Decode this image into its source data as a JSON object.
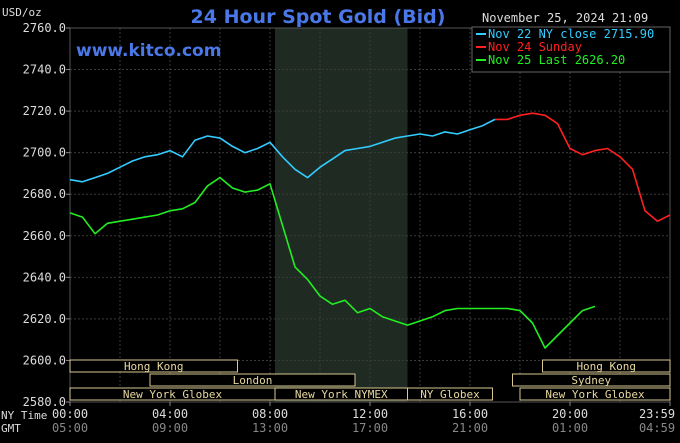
{
  "chart_data": {
    "type": "line",
    "title": "24 Hour Spot Gold (Bid)",
    "unit_label": "USD/oz",
    "timestamp": "November 25, 2024 21:09",
    "watermark": "www.kitco.com",
    "ylim": [
      2580,
      2760
    ],
    "y_ticks": [
      "2760.0",
      "2740.0",
      "2720.0",
      "2700.0",
      "2680.0",
      "2660.0",
      "2640.0",
      "2620.0",
      "2600.0",
      "2580.0"
    ],
    "x_axis_ny_label": "NY Time",
    "x_axis_gmt_label": "GMT",
    "x_ticks_ny": [
      "00:00",
      "04:00",
      "08:00",
      "12:00",
      "16:00",
      "20:00",
      "23:59"
    ],
    "x_ticks_gmt": [
      "05:00",
      "09:00",
      "13:00",
      "17:00",
      "21:00",
      "01:00",
      "04:59"
    ],
    "legend": [
      {
        "label": "Nov 22 NY close 2715.90",
        "color": "#33ccff"
      },
      {
        "label": "Nov 24 Sunday",
        "color": "#ff2020"
      },
      {
        "label": "Nov 25 Last 2626.20",
        "color": "#22ee22"
      }
    ],
    "sessions_row1": [
      {
        "label": "Hong Kong",
        "start": 0,
        "end": 6.7
      },
      {
        "label": "Hong Kong",
        "start": 18.9,
        "end": 24
      }
    ],
    "sessions_row2": [
      {
        "label": "London",
        "start": 3.2,
        "end": 11.4
      },
      {
        "label": "Sydney",
        "start": 17.7,
        "end": 24
      }
    ],
    "sessions_row3": [
      {
        "label": "New York Globex",
        "start": 0,
        "end": 8.2
      },
      {
        "label": "New York NYMEX",
        "start": 8.2,
        "end": 13.5
      },
      {
        "label": "NY Globex",
        "start": 13.5,
        "end": 16.9
      },
      {
        "label": "New York Globex",
        "start": 18,
        "end": 24
      }
    ],
    "shaded_range": [
      8.2,
      13.5
    ],
    "series": [
      {
        "name": "Nov 22 NY close 2715.90",
        "color": "#33ccff",
        "x": [
          0,
          0.5,
          1,
          1.5,
          2,
          2.5,
          3,
          3.5,
          4,
          4.5,
          5,
          5.5,
          6,
          6.5,
          7,
          7.5,
          8,
          8.5,
          9,
          9.5,
          10,
          10.5,
          11,
          11.5,
          12,
          12.5,
          13,
          13.5,
          14,
          14.5,
          15,
          15.5,
          16,
          16.5,
          17
        ],
        "y": [
          2687,
          2686,
          2688,
          2690,
          2693,
          2696,
          2698,
          2699,
          2701,
          2698,
          2706,
          2708,
          2707,
          2703,
          2700,
          2702,
          2705,
          2698,
          2692,
          2688,
          2693,
          2697,
          2701,
          2702,
          2703,
          2705,
          2707,
          2708,
          2709,
          2708,
          2710,
          2709,
          2711,
          2713,
          2716
        ]
      },
      {
        "name": "Nov 24 Sunday",
        "color": "#ff2020",
        "x": [
          17,
          17.5,
          18,
          18.5,
          19,
          19.5,
          20,
          20.5,
          21,
          21.5,
          22,
          22.5,
          23,
          23.5,
          24
        ],
        "y": [
          2716,
          2716,
          2718,
          2719,
          2718,
          2714,
          2702,
          2699,
          2701,
          2702,
          2698,
          2692,
          2672,
          2667,
          2670
        ]
      },
      {
        "name": "Nov 25 Last 2626.20",
        "color": "#22ee22",
        "x": [
          0,
          0.5,
          1,
          1.5,
          2,
          2.5,
          3,
          3.5,
          4,
          4.5,
          5,
          5.5,
          6,
          6.5,
          7,
          7.5,
          8,
          8.5,
          9,
          9.5,
          10,
          10.5,
          11,
          11.5,
          12,
          12.5,
          13,
          13.5,
          14,
          14.5,
          15,
          15.5,
          16,
          16.5,
          17,
          17.5,
          18,
          18.5,
          19,
          19.5,
          20,
          20.5,
          21
        ],
        "y": [
          2671,
          2669,
          2661,
          2666,
          2667,
          2668,
          2669,
          2670,
          2672,
          2673,
          2676,
          2684,
          2688,
          2683,
          2681,
          2682,
          2685,
          2665,
          2645,
          2639,
          2631,
          2627,
          2629,
          2623,
          2625,
          2621,
          2619,
          2617,
          2619,
          2621,
          2624,
          2625,
          2625,
          2625,
          2625,
          2625,
          2624,
          2618,
          2606,
          2612,
          2618,
          2624,
          2626
        ]
      }
    ]
  }
}
